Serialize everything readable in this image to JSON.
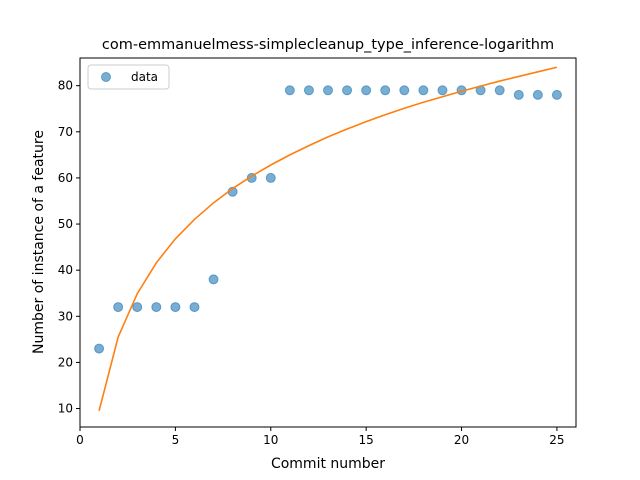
{
  "chart_data": {
    "type": "scatter",
    "title": "com-emmanuelmess-simplecleanup_type_inference-logarithm",
    "xlabel": "Commit number",
    "ylabel": "Number of instance of a feature",
    "xlim": [
      0,
      26
    ],
    "ylim": [
      6,
      86
    ],
    "xticks": [
      0,
      5,
      10,
      15,
      20,
      25
    ],
    "yticks": [
      10,
      20,
      30,
      40,
      50,
      60,
      70,
      80
    ],
    "grid": false,
    "legend_position": "top-left",
    "series": [
      {
        "name": "data",
        "kind": "scatter",
        "color": "#1f77b4",
        "x": [
          1,
          2,
          3,
          4,
          5,
          6,
          7,
          8,
          9,
          10,
          11,
          12,
          13,
          14,
          15,
          16,
          17,
          18,
          19,
          20,
          21,
          22,
          23,
          24,
          25
        ],
        "y": [
          23,
          32,
          32,
          32,
          32,
          32,
          38,
          57,
          60,
          60,
          79,
          79,
          79,
          79,
          79,
          79,
          79,
          79,
          79,
          79,
          79,
          79,
          78,
          78,
          78
        ]
      },
      {
        "kind": "line",
        "color": "#ff7f0e",
        "x": [
          1,
          2,
          3,
          4,
          5,
          6,
          7,
          8,
          9,
          10,
          11,
          12,
          13,
          14,
          15,
          16,
          17,
          18,
          19,
          20,
          21,
          22,
          23,
          24,
          25
        ],
        "y": [
          9.5,
          25.5,
          34.9,
          41.6,
          46.8,
          51.0,
          54.6,
          57.7,
          60.4,
          62.8,
          65.0,
          67.0,
          68.9,
          70.6,
          72.2,
          73.7,
          75.1,
          76.4,
          77.6,
          78.8,
          79.9,
          81.0,
          82.0,
          83.0,
          84.0
        ]
      }
    ]
  }
}
